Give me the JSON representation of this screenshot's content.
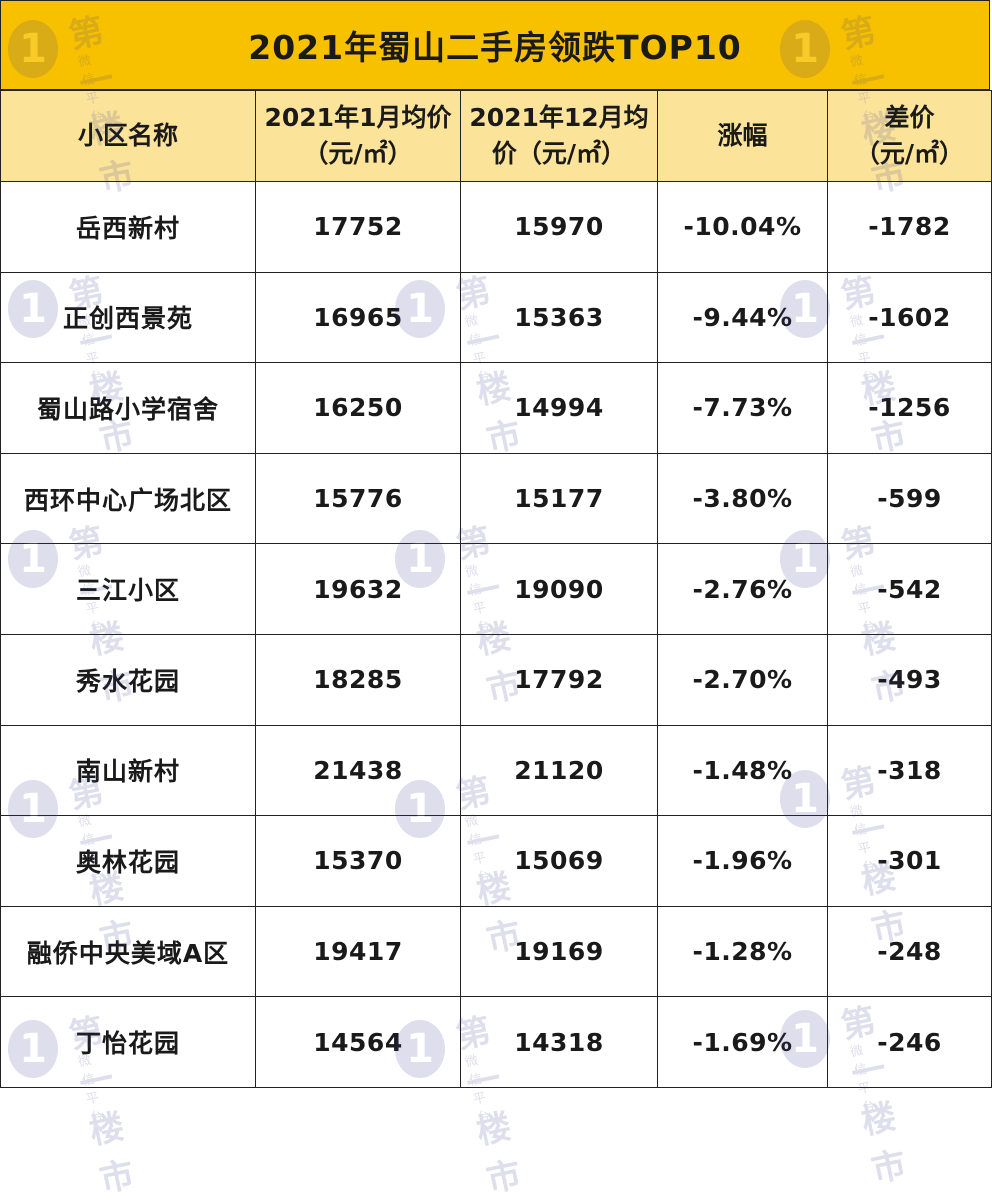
{
  "title": "2021年蜀山二手房领跌TOP10",
  "headers": {
    "name": "小区名称",
    "jan_line1": "2021年1月均价",
    "jan_line2": "（元/㎡）",
    "dec_line1": "2021年12月均",
    "dec_line2": "价（元/㎡）",
    "change": "涨幅",
    "diff_line1": "差价",
    "diff_line2": "（元/㎡）"
  },
  "rows": [
    {
      "name": "岳西新村",
      "jan": "17752",
      "dec": "15970",
      "change": "-10.04%",
      "diff": "-1782"
    },
    {
      "name": "正创西景苑",
      "jan": "16965",
      "dec": "15363",
      "change": "-9.44%",
      "diff": "-1602"
    },
    {
      "name": "蜀山路小学宿舍",
      "jan": "16250",
      "dec": "14994",
      "change": "-7.73%",
      "diff": "-1256"
    },
    {
      "name": "西环中心广场北区",
      "jan": "15776",
      "dec": "15177",
      "change": "-3.80%",
      "diff": "-599"
    },
    {
      "name": "三江小区",
      "jan": "19632",
      "dec": "19090",
      "change": "-2.76%",
      "diff": "-542"
    },
    {
      "name": "秀水花园",
      "jan": "18285",
      "dec": "17792",
      "change": "-2.70%",
      "diff": "-493"
    },
    {
      "name": "南山新村",
      "jan": "21438",
      "dec": "21120",
      "change": "-1.48%",
      "diff": "-318"
    },
    {
      "name": "奥林花园",
      "jan": "15370",
      "dec": "15069",
      "change": "-1.96%",
      "diff": "-301"
    },
    {
      "name": "融侨中央美域A区",
      "jan": "19417",
      "dec": "19169",
      "change": "-1.28%",
      "diff": "-248"
    },
    {
      "name": "丁怡花园",
      "jan": "14564",
      "dec": "14318",
      "change": "-1.69%",
      "diff": "-246"
    }
  ],
  "watermark": {
    "badge": "1",
    "text": "第一楼市",
    "sub": "微信平台"
  },
  "colors": {
    "title_bg": "#f7c100",
    "header_bg": "#fbe39a",
    "watermark": "#3b3b8f"
  }
}
